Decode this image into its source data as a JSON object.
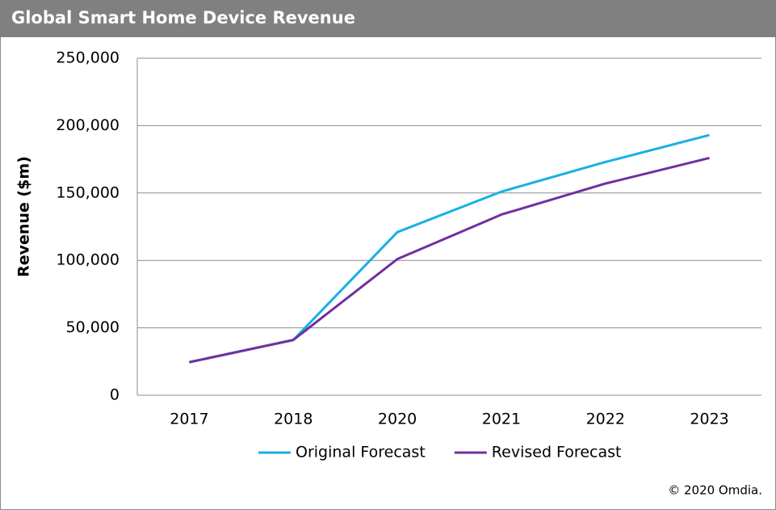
{
  "chart_data": {
    "type": "line",
    "title": "Global Smart Home Device Revenue",
    "y_label": "Revenue ($m)",
    "categories": [
      "2017",
      "2018",
      "2020",
      "2021",
      "2022",
      "2023"
    ],
    "series": [
      {
        "name": "Original Forecast",
        "color": "#1aafe6",
        "values": [
          24500,
          41000,
          121000,
          151000,
          173000,
          193000
        ]
      },
      {
        "name": "Revised Forecast",
        "color": "#7030a0",
        "values": [
          24500,
          41000,
          101000,
          134000,
          157000,
          176000
        ]
      }
    ],
    "ylim": [
      0,
      250000
    ],
    "yticks": [
      0,
      {
        "value": 50000,
        "label": "50,000"
      },
      {
        "value": 100000,
        "label": "100,000"
      },
      {
        "value": 150000,
        "label": "150,000"
      },
      {
        "value": 200000,
        "label": "200,000"
      },
      {
        "value": 250000,
        "label": "250,000"
      }
    ],
    "grid": true,
    "legend": "bottom",
    "source": "© 2020 Omdia."
  }
}
